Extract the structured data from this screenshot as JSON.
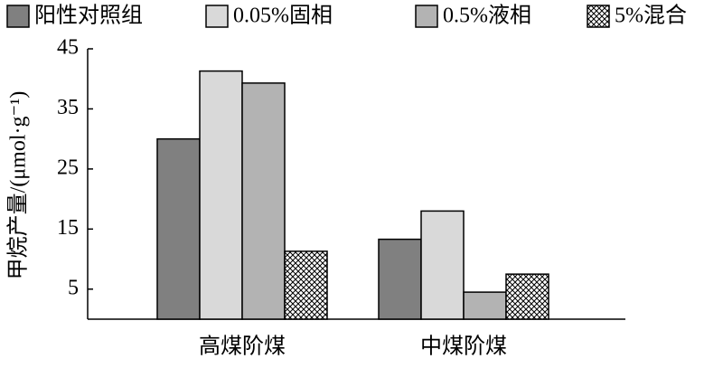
{
  "chart_data": {
    "type": "bar",
    "y_label": "甲烷产量/(μmol·g⁻¹)",
    "categories": [
      "高煤阶煤",
      "中煤阶煤"
    ],
    "series": [
      {
        "name": "阳性对照组",
        "color": "#808080",
        "values": [
          30,
          13.3
        ]
      },
      {
        "name": "0.05%固相",
        "color": "#d9d9d9",
        "values": [
          41.3,
          18
        ]
      },
      {
        "name": "0.5%液相",
        "color": "#b3b3b3",
        "values": [
          39.3,
          4.5
        ]
      },
      {
        "name": "5%混合",
        "color": "#000000",
        "pattern": "crosshatch",
        "values": [
          11.3,
          7.5
        ]
      }
    ],
    "ylim": [
      0,
      45
    ],
    "yticks": [
      5,
      15,
      25,
      35,
      45
    ],
    "grid": false
  }
}
